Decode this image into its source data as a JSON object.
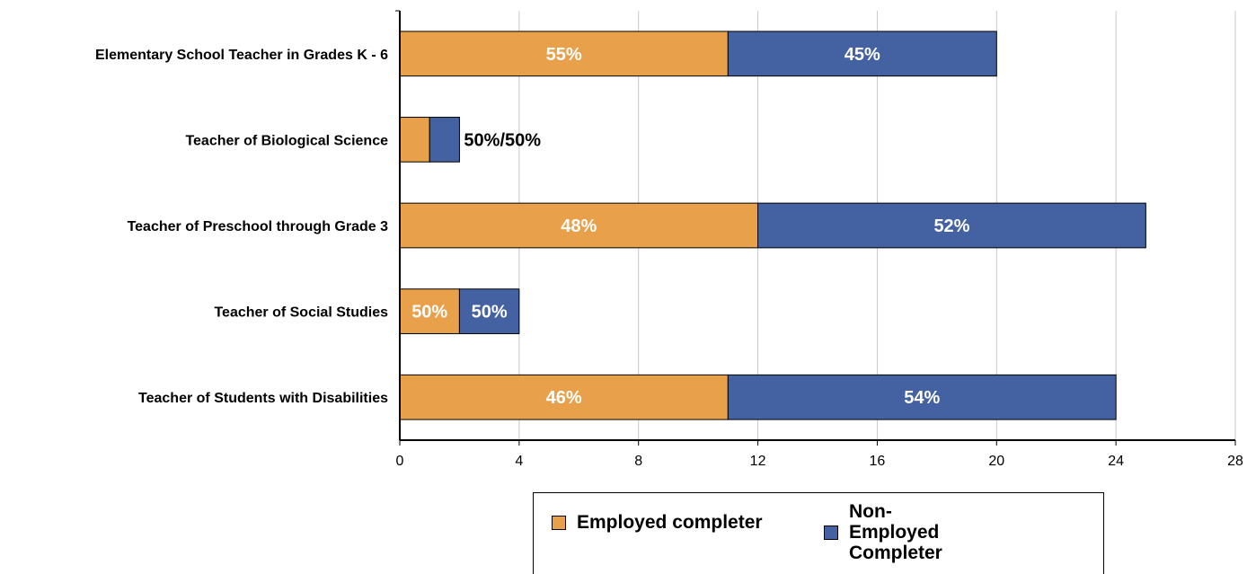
{
  "chart_data": {
    "type": "bar",
    "orientation": "horizontal",
    "stacked": true,
    "categories": [
      "Elementary School Teacher in Grades K - 6",
      "Teacher of Biological Science",
      "Teacher of Preschool through Grade 3",
      "Teacher of Social Studies",
      "Teacher of Students with Disabilities"
    ],
    "series": [
      {
        "name": "Employed completer",
        "color": "#E9A04A",
        "values": [
          11,
          1,
          12,
          2,
          11
        ]
      },
      {
        "name": "Non-Employed Completer",
        "color": "#4462A2",
        "values": [
          9,
          1,
          13,
          2,
          13
        ]
      }
    ],
    "data_labels": [
      [
        "55%",
        "45%"
      ],
      [
        "",
        ""
      ],
      [
        "48%",
        "52%"
      ],
      [
        "50%",
        "50%"
      ],
      [
        "46%",
        "54%"
      ]
    ],
    "annotations": [
      {
        "category": "Teacher of Biological Science",
        "text": "50%/50%"
      }
    ],
    "xlim": [
      0,
      28
    ],
    "xticks": [
      "0",
      "4",
      "8",
      "12",
      "16",
      "20",
      "24",
      "28"
    ],
    "grid": true,
    "legend_position": "bottom",
    "title": "",
    "xlabel": "",
    "ylabel": ""
  },
  "legend": {
    "items": [
      {
        "label": "Employed completer",
        "color": "#E9A04A"
      },
      {
        "label": "Non-Employed Completer",
        "color": "#4462A2"
      }
    ]
  }
}
